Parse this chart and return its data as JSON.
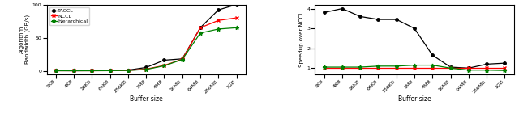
{
  "x_labels": [
    "1KB",
    "4KB",
    "16KB",
    "64KB",
    "256KB",
    "1MB",
    "4MB",
    "16MB",
    "64MB",
    "256MB",
    "1GB"
  ],
  "left_chart": {
    "ylabel": "Algorithm\nBandwidth (GB/s)",
    "xlabel": "Buffer size",
    "ylim": [
      -5,
      100
    ],
    "yticks": [
      0,
      50,
      100
    ],
    "taccl": [
      0.2,
      0.1,
      0.2,
      0.3,
      1.0,
      5.0,
      16.0,
      18.0,
      65.0,
      92.0,
      100.0
    ],
    "nccl": [
      0.1,
      0.1,
      0.1,
      0.2,
      0.5,
      2.5,
      8.0,
      17.5,
      65.0,
      76.0,
      80.0
    ],
    "hierarchical": [
      0.1,
      0.1,
      0.1,
      0.2,
      0.5,
      2.0,
      7.5,
      17.0,
      57.0,
      63.0,
      65.0
    ]
  },
  "right_chart": {
    "ylabel": "Speedup over NCCL",
    "xlabel": "Buffer size",
    "ylim": [
      0.7,
      4.2
    ],
    "yticks": [
      1,
      2,
      3,
      4
    ],
    "taccl": [
      3.8,
      4.0,
      3.6,
      3.45,
      3.45,
      3.0,
      1.65,
      1.05,
      1.0,
      1.2,
      1.25
    ],
    "nccl": [
      1.0,
      1.0,
      1.0,
      1.0,
      1.0,
      1.0,
      1.0,
      1.0,
      1.0,
      1.0,
      1.0
    ],
    "hierarchical": [
      1.05,
      1.05,
      1.05,
      1.1,
      1.1,
      1.15,
      1.15,
      1.0,
      0.9,
      0.9,
      0.88
    ]
  },
  "taccl_color": "black",
  "nccl_color": "red",
  "hier_color": "green",
  "legend_labels": [
    "TACCL",
    "NCCL",
    "hierarchical"
  ],
  "marker_size": 2.5,
  "linewidth": 0.9,
  "tick_fontsize": 4.5,
  "label_fontsize": 5.5,
  "ylabel_fontsize": 5.0,
  "legend_fontsize": 4.5
}
